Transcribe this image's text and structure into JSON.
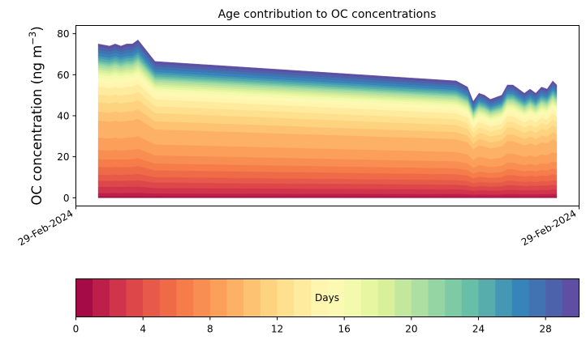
{
  "chart_data": {
    "type": "area",
    "stacked": true,
    "title": "Age contribution to OC concentrations",
    "xlabel": "",
    "ylabel": "OC concentration (ng m",
    "ylabel_superscript": "−3",
    "ylabel_close": ")",
    "ylim": [
      -4,
      84
    ],
    "yticks": [
      0,
      20,
      40,
      60,
      80
    ],
    "xticks": [
      "29-Feb-2024",
      "29-Feb-2024"
    ],
    "x": [
      0,
      1,
      2,
      3,
      4,
      5,
      6,
      7,
      10,
      63,
      65,
      66,
      67,
      68,
      69,
      70,
      71,
      72,
      73,
      74,
      75,
      76,
      77,
      78,
      79,
      80,
      80.7
    ],
    "total": [
      75,
      74.5,
      74,
      75,
      74,
      75,
      75,
      77,
      66.5,
      57,
      54,
      47,
      51,
      50,
      48,
      49,
      50,
      55,
      55,
      53,
      51,
      53,
      51,
      54,
      53,
      57,
      55
    ],
    "band_cumulative_fraction_note": "cumulative share of total reached after each age band (days 0-29)",
    "band_cumulative_fraction": [
      0.008,
      0.03,
      0.07,
      0.11,
      0.15,
      0.2,
      0.25,
      0.31,
      0.39,
      0.5,
      0.56,
      0.62,
      0.67,
      0.72,
      0.75,
      0.78,
      0.8,
      0.815,
      0.83,
      0.845,
      0.86,
      0.87,
      0.88,
      0.89,
      0.905,
      0.92,
      0.94,
      0.96,
      0.98,
      1.0
    ],
    "series_names": [
      "0",
      "1",
      "2",
      "3",
      "4",
      "5",
      "6",
      "7",
      "8",
      "9",
      "10",
      "11",
      "12",
      "13",
      "14",
      "15",
      "16",
      "17",
      "18",
      "19",
      "20",
      "21",
      "22",
      "23",
      "24",
      "25",
      "26",
      "27",
      "28",
      "29"
    ],
    "colors": [
      "#a50c47",
      "#bd1f4a",
      "#cf344b",
      "#dd4749",
      "#e75948",
      "#ef6b47",
      "#f67c4a",
      "#f98e52",
      "#fc9f5b",
      "#fdb166",
      "#fdc373",
      "#fed380",
      "#fee08e",
      "#feeb9d",
      "#fff5ae",
      "#fbf9b2",
      "#f3faad",
      "#e7f6a1",
      "#d9f09b",
      "#c4e79e",
      "#addea2",
      "#95d5a4",
      "#7dcaa5",
      "#66bfa6",
      "#57adab",
      "#4598b3",
      "#3784bb",
      "#4172b2",
      "#4e61ab",
      "#5e4fa2"
    ],
    "colorbar": {
      "label": "Days",
      "range": [
        0,
        30
      ],
      "ticks": [
        "0",
        "4",
        "8",
        "12",
        "16",
        "20",
        "24",
        "28"
      ],
      "tick_values": [
        0,
        4,
        8,
        12,
        16,
        20,
        24,
        28
      ]
    }
  }
}
